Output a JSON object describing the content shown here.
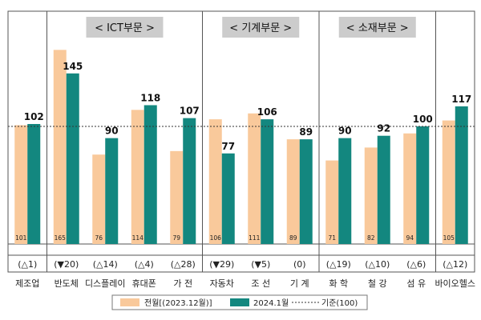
{
  "chart_data": {
    "type": "bar",
    "sections": [
      {
        "label": "< ICT부문 >",
        "first": 1,
        "last": 4
      },
      {
        "label": "< 기계부문 >",
        "first": 5,
        "last": 7
      },
      {
        "label": "< 소재부문 >",
        "first": 8,
        "last": 10
      }
    ],
    "categories": [
      "제조업",
      "반도체",
      "디스플레이",
      "휴대폰",
      "가 전",
      "자동차",
      "조 선",
      "기 계",
      "화 학",
      "철 강",
      "섬 유",
      "바이오헬스"
    ],
    "series": [
      {
        "name": "전월[(2023.12월)]",
        "color": "#f9c99b",
        "values": [
          101,
          165,
          76,
          114,
          79,
          106,
          111,
          89,
          71,
          82,
          94,
          105
        ]
      },
      {
        "name": "2024.1월",
        "color": "#13877f",
        "values": [
          102,
          145,
          90,
          118,
          107,
          77,
          106,
          89,
          90,
          92,
          100,
          117
        ]
      }
    ],
    "changes": [
      "(△1)",
      "(▼20)",
      "(△14)",
      "(△4)",
      "(△28)",
      "(▼29)",
      "(▼5)",
      "(0)",
      "(△19)",
      "(△10)",
      "(△6)",
      "(△12)"
    ],
    "baseline": {
      "value": 100,
      "label": "기준(100)"
    },
    "ylim": [
      0,
      170
    ],
    "section_bg": "#cccccc",
    "border_color": "#555555"
  }
}
